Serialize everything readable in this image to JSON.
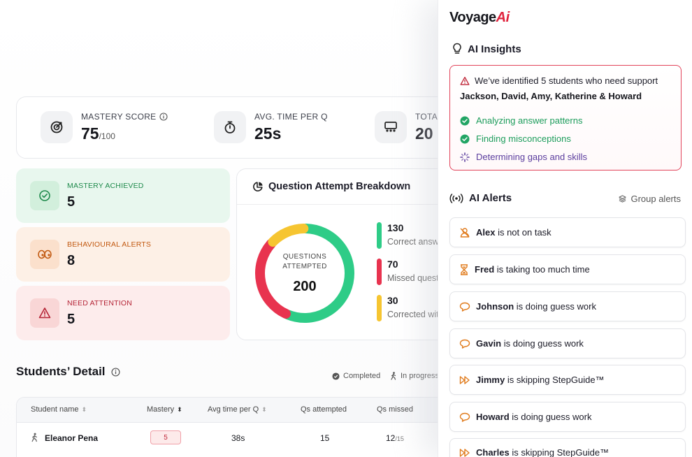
{
  "stats": [
    {
      "label": "MASTERY SCORE",
      "value": "75",
      "suffix": "/100",
      "icon": "target-icon"
    },
    {
      "label": "AVG. TIME PER Q",
      "value": "25s",
      "suffix": "",
      "icon": "stopwatch-icon"
    },
    {
      "label": "TOTAL",
      "value": "20",
      "suffix": "",
      "icon": "classroom-icon"
    }
  ],
  "metrics": [
    {
      "label": "MASTERY ACHIEVED",
      "value": "5",
      "icon": "check-circle-icon",
      "color": "#1f8a4c"
    },
    {
      "label": "BEHAVIOURAL ALERTS",
      "value": "8",
      "icon": "eyes-icon",
      "color": "#c25a12"
    },
    {
      "label": "NEED ATTENTION",
      "value": "5",
      "icon": "warning-icon",
      "color": "#b42335"
    }
  ],
  "breakdown": {
    "title": "Question Attempt Breakdown",
    "center_label": "QUESTIONS ATTEMPTED",
    "center_value": "200",
    "items": [
      {
        "value": "130",
        "label": "Correct answ",
        "color": "#2ecc87"
      },
      {
        "value": "70",
        "label": "Missed quest",
        "color": "#e8334f"
      },
      {
        "value": "30",
        "label": "Corrected wit",
        "color": "#f6c531"
      }
    ]
  },
  "students": {
    "title": "Students’ Detail",
    "status_completed": "Completed",
    "status_in_progress": "In progress",
    "columns": [
      "Student name",
      "Mastery",
      "Avg time per Q",
      "Qs attempted",
      "Qs missed"
    ],
    "rows": [
      {
        "name": "Eleanor Pena",
        "mastery": "5",
        "avg_time": "38s",
        "attempted": "15",
        "missed": "12",
        "missed_of": "/15"
      }
    ]
  },
  "panel": {
    "logo_main": "Voyage",
    "logo_ai": "Ai",
    "insights_title": "AI Insights",
    "insight_headline": "We’ve identified 5 students who need support",
    "insight_names": "Jackson, David, Amy, Katherine & Howard",
    "steps": [
      {
        "label": "Analyzing answer patterns",
        "state": "done"
      },
      {
        "label": "Finding misconceptions",
        "state": "done"
      },
      {
        "label": "Determining gaps and skills",
        "state": "loading"
      }
    ],
    "alerts_title": "AI Alerts",
    "group_alerts": "Group alerts",
    "alerts": [
      {
        "name": "Alex",
        "text": " is not on task",
        "icon": "user-off-icon"
      },
      {
        "name": "Fred",
        "text": " is taking too much time",
        "icon": "hourglass-icon"
      },
      {
        "name": "Johnson",
        "text": " is doing guess work",
        "icon": "chat-icon"
      },
      {
        "name": "Gavin",
        "text": " is doing guess work",
        "icon": "chat-icon"
      },
      {
        "name": "Jimmy",
        "text": " is skipping StepGuide™",
        "icon": "fast-forward-icon"
      },
      {
        "name": "Howard",
        "text": " is doing guess work",
        "icon": "chat-icon"
      },
      {
        "name": "Charles",
        "text": " is skipping StepGuide™",
        "icon": "fast-forward-icon"
      }
    ]
  }
}
